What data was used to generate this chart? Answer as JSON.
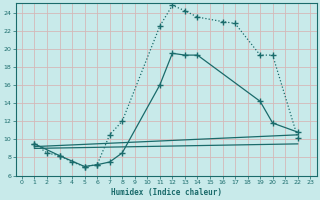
{
  "xlabel": "Humidex (Indice chaleur)",
  "bg_color": "#c8eaea",
  "grid_color": "#d4b8b8",
  "line_color": "#1a6b6b",
  "xlim": [
    -0.5,
    23.5
  ],
  "ylim": [
    6,
    25
  ],
  "xticks": [
    0,
    1,
    2,
    3,
    4,
    5,
    6,
    7,
    8,
    9,
    10,
    11,
    12,
    13,
    14,
    15,
    16,
    17,
    18,
    19,
    20,
    21,
    22,
    23
  ],
  "yticks": [
    6,
    8,
    10,
    12,
    14,
    16,
    18,
    20,
    22,
    24
  ],
  "line1_x": [
    1,
    2,
    3,
    4,
    5,
    6,
    7,
    8,
    11,
    12,
    13,
    14,
    16,
    17,
    19,
    20,
    22
  ],
  "line1_y": [
    9.5,
    8.5,
    8.2,
    7.5,
    7.0,
    7.2,
    10.5,
    12.0,
    22.5,
    24.8,
    24.2,
    23.5,
    23.0,
    22.8,
    19.3,
    19.3,
    10.2
  ],
  "line2_x": [
    1,
    3,
    5,
    6,
    7,
    8,
    11,
    12,
    13,
    14,
    19,
    20,
    22
  ],
  "line2_y": [
    9.5,
    8.2,
    7.0,
    7.2,
    7.5,
    8.5,
    16.0,
    19.5,
    19.3,
    19.3,
    14.2,
    11.8,
    10.8
  ],
  "line3_x": [
    1,
    22
  ],
  "line3_y": [
    9.2,
    10.5
  ],
  "line4_x": [
    1,
    22
  ],
  "line4_y": [
    9.0,
    9.5
  ]
}
